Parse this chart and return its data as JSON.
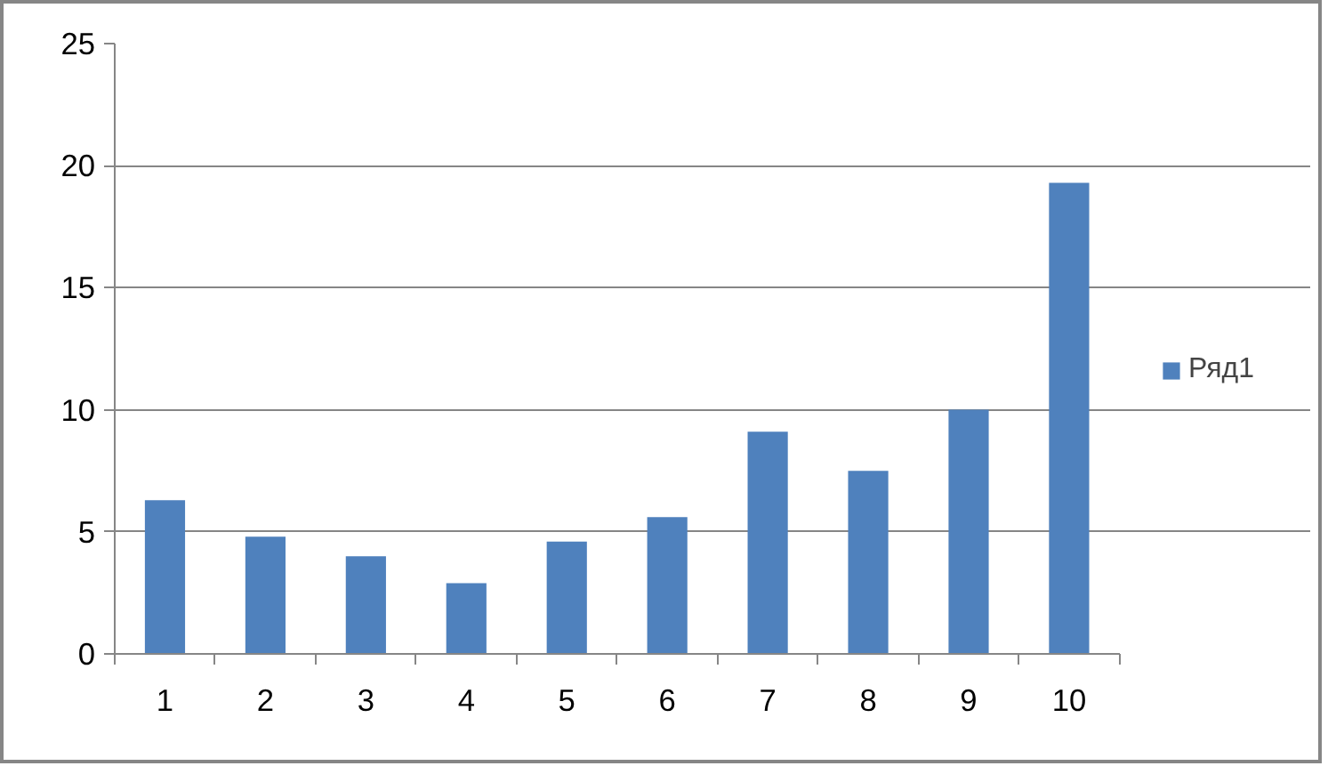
{
  "chart_data": {
    "type": "bar",
    "categories": [
      "1",
      "2",
      "3",
      "4",
      "5",
      "6",
      "7",
      "8",
      "9",
      "10"
    ],
    "series": [
      {
        "name": "Ряд1",
        "color": "#4f81bd",
        "values": [
          6.3,
          4.8,
          4.0,
          2.9,
          4.6,
          5.6,
          9.1,
          7.5,
          10.0,
          19.3
        ]
      }
    ],
    "ylim": [
      0,
      25
    ],
    "yticks": [
      0,
      5,
      10,
      15,
      20,
      25
    ],
    "grid": "y",
    "legend": "right"
  }
}
